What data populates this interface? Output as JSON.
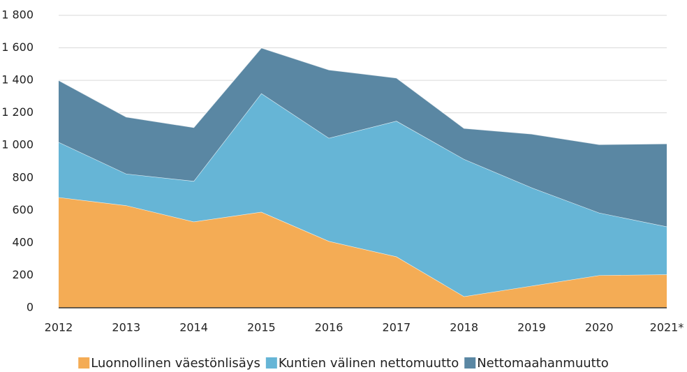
{
  "chart_data": {
    "type": "stacked_area",
    "categories": [
      "2012",
      "2013",
      "2014",
      "2015",
      "2016",
      "2017",
      "2018",
      "2019",
      "2020",
      "2021*"
    ],
    "series": [
      {
        "name": "Luonnollinen väestönlisäys",
        "color": "#f4ac55",
        "values": [
          680,
          630,
          530,
          590,
          410,
          315,
          70,
          135,
          200,
          205
        ]
      },
      {
        "name": "Kuntien välinen nettomuutto",
        "color": "#66b5d6",
        "values": [
          340,
          195,
          250,
          730,
          635,
          835,
          845,
          605,
          385,
          295
        ]
      },
      {
        "name": "Nettomaahanmuutto",
        "color": "#5a87a3",
        "values": [
          380,
          350,
          330,
          280,
          420,
          265,
          190,
          330,
          420,
          510
        ]
      }
    ],
    "ylim": [
      0,
      1800
    ],
    "yticks": [
      0,
      200,
      400,
      600,
      800,
      {
        "value": 1000,
        "label": "1 000"
      },
      {
        "value": 1200,
        "label": "1 200"
      },
      {
        "value": 1400,
        "label": "1 400"
      },
      {
        "value": 1600,
        "label": "1 600"
      },
      {
        "value": 1800,
        "label": "1 800"
      }
    ],
    "grid": true,
    "legend": "bottom"
  }
}
